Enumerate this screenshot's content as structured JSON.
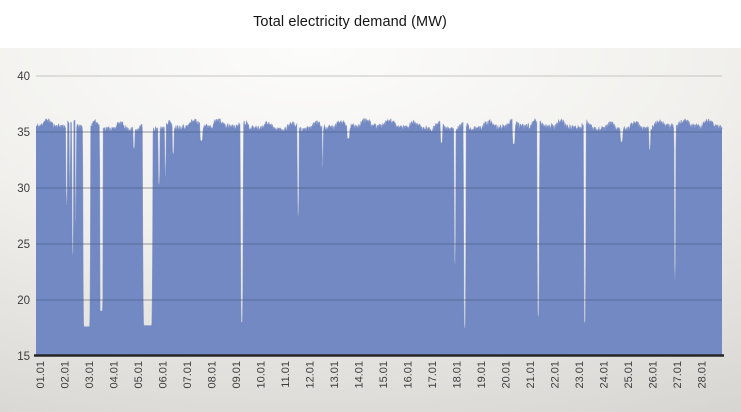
{
  "chart_data": {
    "type": "area",
    "title": "Total electricity demand (MW)",
    "xlabel": "",
    "ylabel": "",
    "unit": "MW",
    "ylim": [
      15,
      40
    ],
    "y_ticks": [
      40,
      35,
      30,
      25,
      20,
      15
    ],
    "x_categories": [
      "01.01",
      "02.01",
      "03.01",
      "04.01",
      "05.01",
      "06.01",
      "07.01",
      "08.01",
      "09.01",
      "10.01",
      "11.01",
      "12.01",
      "13.01",
      "14.01",
      "15.01",
      "16.01",
      "17.01",
      "18.01",
      "19.01",
      "20.01",
      "21.01",
      "22.01",
      "23.01",
      "24.01",
      "25.01",
      "26.01",
      "27.01",
      "28.01"
    ],
    "x_span_days": 28,
    "grid": true,
    "legend": false,
    "baseline": {
      "mean_mw": 35.35,
      "daily_amplitude_mw": 0.5,
      "slow_amplitude_mw": 0.15,
      "slow_period_days": 6.5,
      "noise_mw": 0.5,
      "typical_range_mw": [
        34.8,
        36.6
      ],
      "seed": 11
    },
    "dips": [
      {
        "day": 2.25,
        "min_mw": 28.5,
        "width_days": 0.09,
        "shape": "v"
      },
      {
        "day": 2.38,
        "min_mw": 30.0,
        "width_days": 0.07,
        "shape": "v"
      },
      {
        "day": 2.5,
        "min_mw": 24.0,
        "width_days": 0.1,
        "shape": "v"
      },
      {
        "day": 2.62,
        "min_mw": 27.0,
        "width_days": 0.07,
        "shape": "v"
      },
      {
        "day": 3.07,
        "min_mw": 17.6,
        "width_days": 0.34,
        "shape": "flat"
      },
      {
        "day": 3.67,
        "min_mw": 19.0,
        "width_days": 0.16,
        "shape": "flat"
      },
      {
        "day": 5.0,
        "min_mw": 33.5,
        "width_days": 0.1,
        "shape": "v"
      },
      {
        "day": 5.56,
        "min_mw": 17.7,
        "width_days": 0.45,
        "shape": "flat"
      },
      {
        "day": 6.02,
        "min_mw": 30.3,
        "width_days": 0.1,
        "shape": "v"
      },
      {
        "day": 6.28,
        "min_mw": 31.0,
        "width_days": 0.08,
        "shape": "v"
      },
      {
        "day": 6.6,
        "min_mw": 33.0,
        "width_days": 0.1,
        "shape": "v"
      },
      {
        "day": 7.75,
        "min_mw": 34.2,
        "width_days": 0.15,
        "shape": "v"
      },
      {
        "day": 9.4,
        "min_mw": 18.0,
        "width_days": 0.14,
        "shape": "v"
      },
      {
        "day": 11.7,
        "min_mw": 27.5,
        "width_days": 0.1,
        "shape": "v"
      },
      {
        "day": 12.7,
        "min_mw": 31.8,
        "width_days": 0.07,
        "shape": "v"
      },
      {
        "day": 13.75,
        "min_mw": 34.4,
        "width_days": 0.15,
        "shape": "v"
      },
      {
        "day": 17.55,
        "min_mw": 34.0,
        "width_days": 0.12,
        "shape": "v"
      },
      {
        "day": 18.1,
        "min_mw": 23.2,
        "width_days": 0.1,
        "shape": "v"
      },
      {
        "day": 18.5,
        "min_mw": 17.5,
        "width_days": 0.13,
        "shape": "v"
      },
      {
        "day": 20.5,
        "min_mw": 33.9,
        "width_days": 0.15,
        "shape": "v"
      },
      {
        "day": 21.5,
        "min_mw": 18.5,
        "width_days": 0.13,
        "shape": "v"
      },
      {
        "day": 23.4,
        "min_mw": 17.9,
        "width_days": 0.12,
        "shape": "v"
      },
      {
        "day": 24.9,
        "min_mw": 34.1,
        "width_days": 0.14,
        "shape": "v"
      },
      {
        "day": 26.05,
        "min_mw": 33.4,
        "width_days": 0.1,
        "shape": "v"
      },
      {
        "day": 27.08,
        "min_mw": 21.8,
        "width_days": 0.1,
        "shape": "v"
      }
    ],
    "colors": {
      "fill": "#7289c4",
      "top_edge": "#6d83bd",
      "grid_under": "#c7c5c2",
      "grid_over_fill": "rgba(35,40,60,0.32)",
      "axis_line": "#262626",
      "tick_text": "#3d3d3d",
      "title_text": "#151515"
    }
  }
}
